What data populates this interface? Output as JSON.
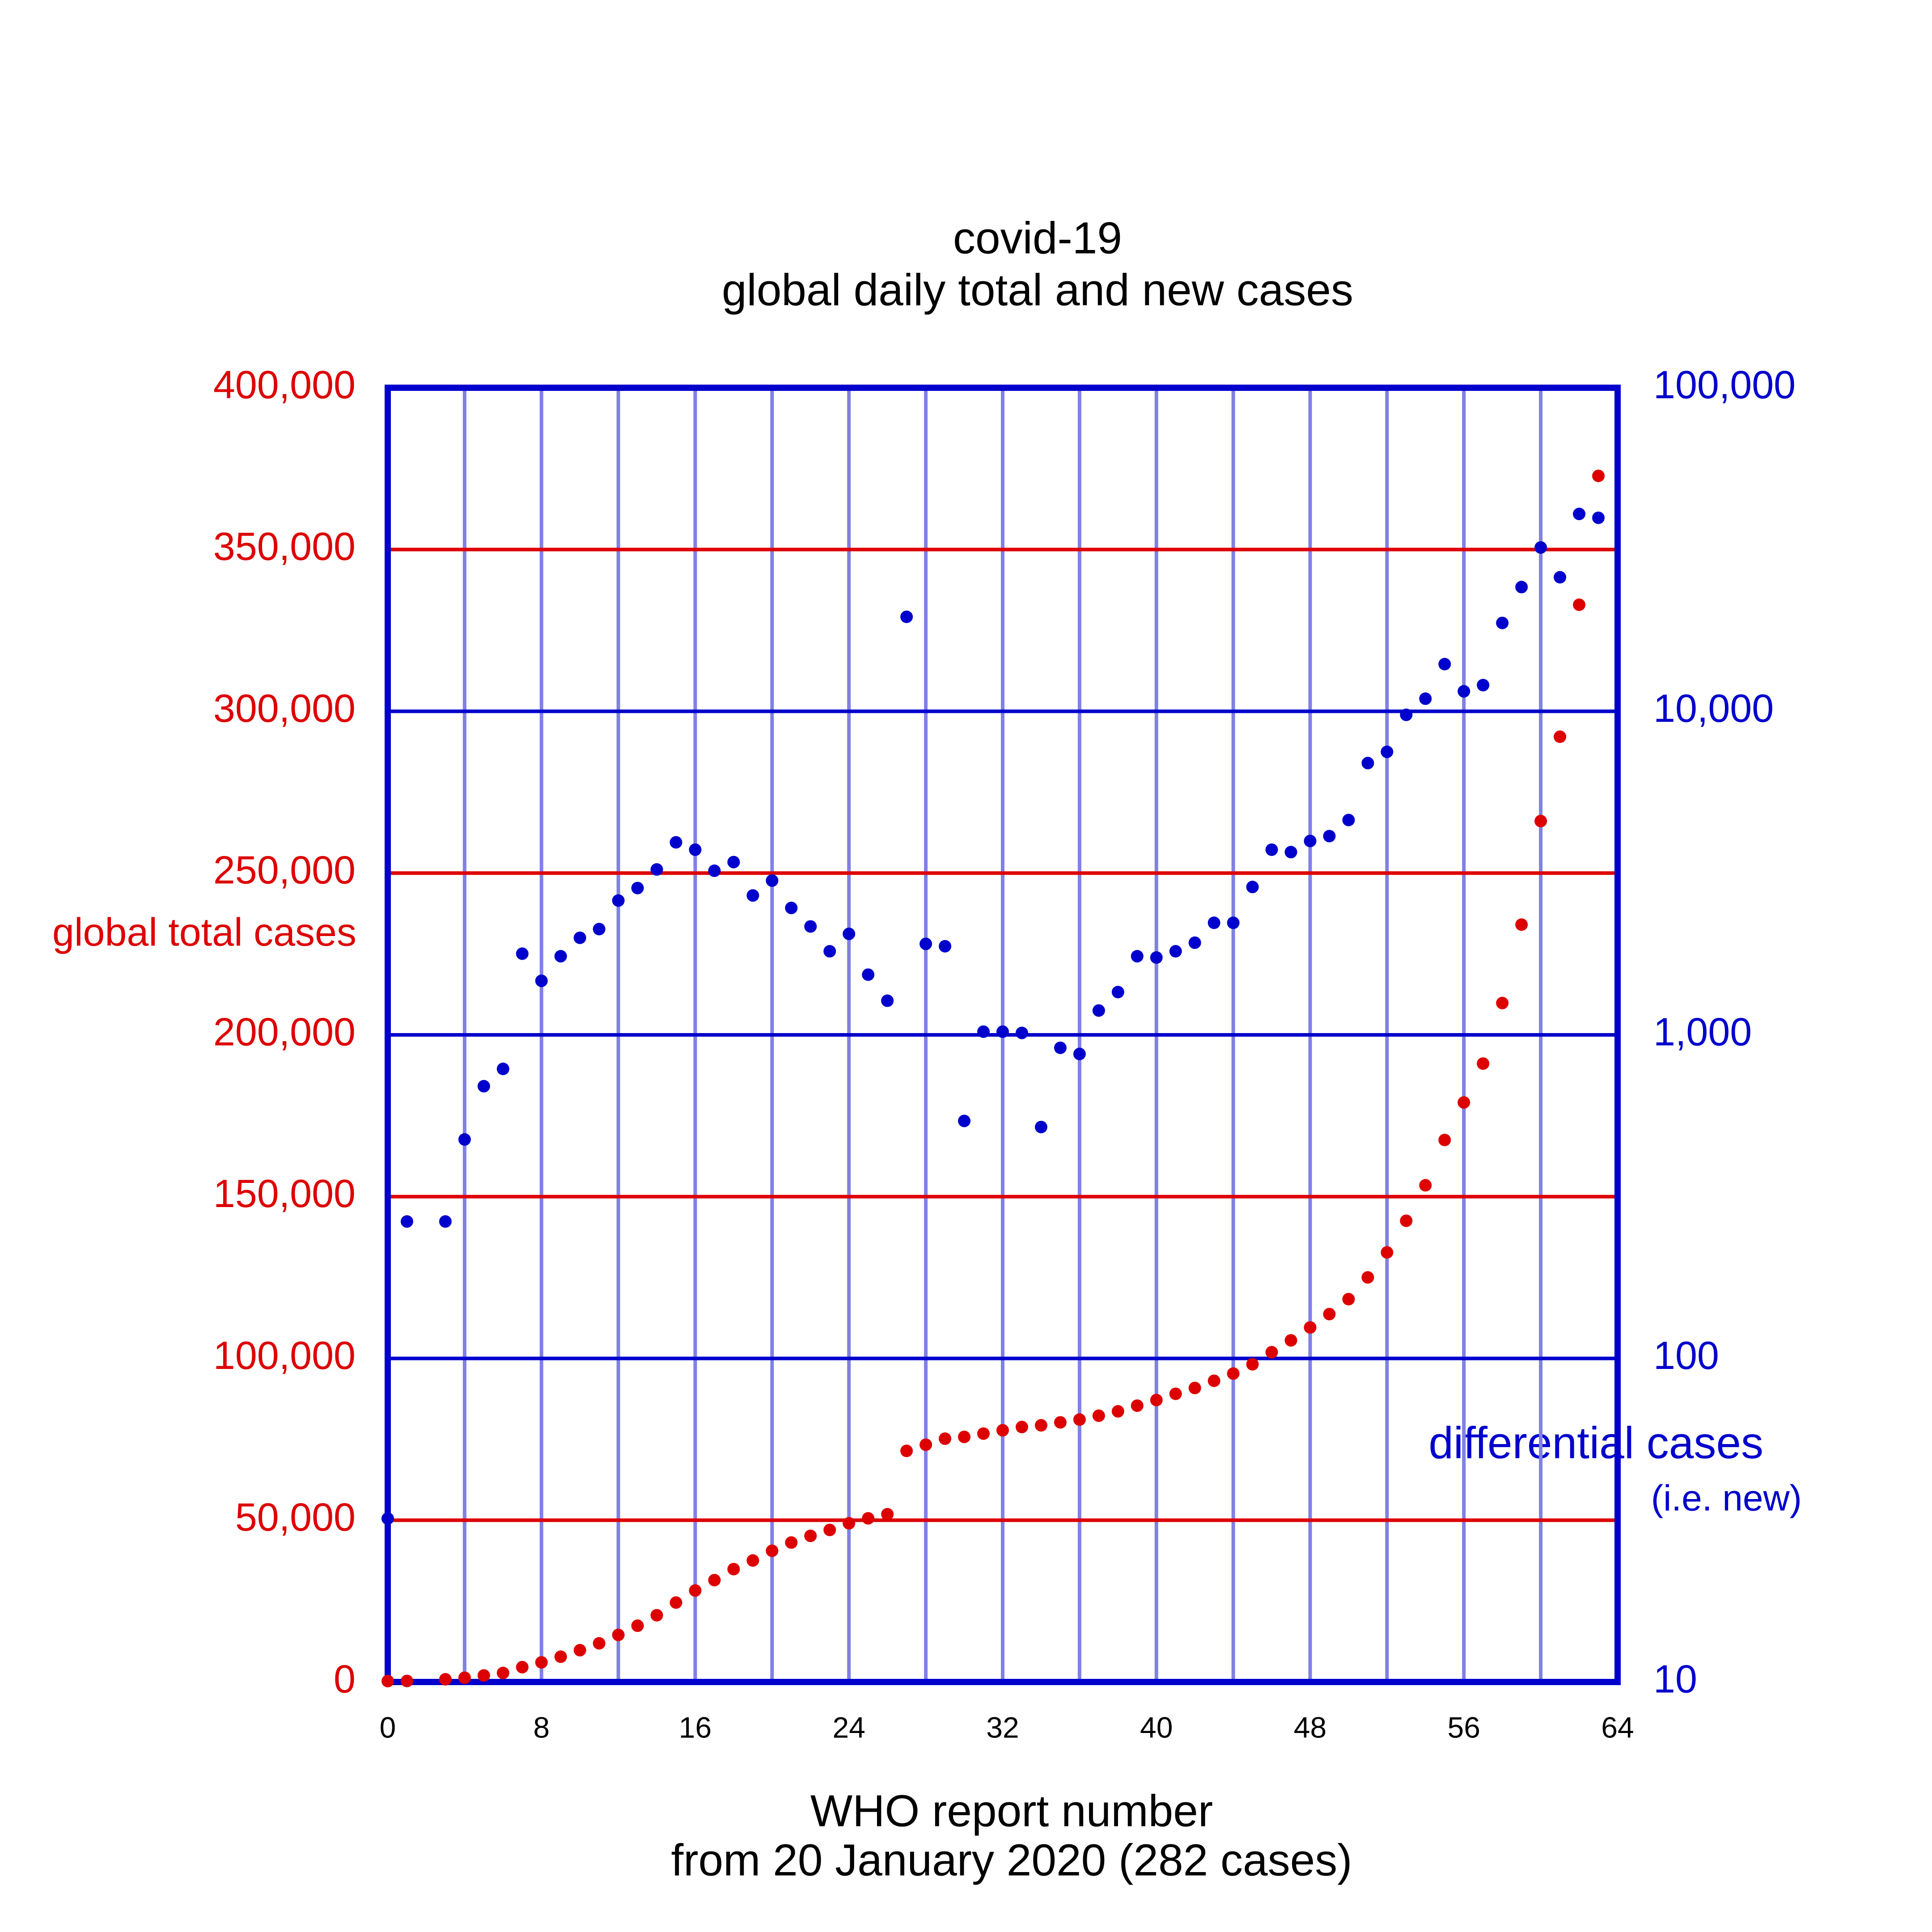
{
  "chart_data": {
    "type": "scatter",
    "title": "covid-19",
    "subtitle": "global daily total and new cases",
    "xlabel": "WHO report number",
    "xlabel_note": "from 20 January 2020 (282 cases)",
    "ylabel": "global total cases",
    "y2label": "differential cases",
    "y2label_note": "(i.e. new)",
    "x": [
      0,
      1,
      2,
      3,
      4,
      5,
      6,
      7,
      8,
      9,
      10,
      11,
      12,
      13,
      14,
      15,
      16,
      17,
      18,
      19,
      20,
      21,
      22,
      23,
      24,
      25,
      26,
      27,
      28,
      29,
      30,
      31,
      32,
      33,
      34,
      35,
      36,
      37,
      38,
      39,
      40,
      41,
      42,
      43,
      44,
      45,
      46,
      47,
      48,
      49,
      50,
      51,
      52,
      53,
      54,
      55,
      56,
      57,
      58,
      59,
      60,
      61,
      62,
      63,
      64
    ],
    "series": [
      {
        "color": "#dd0000",
        "axis": "y",
        "values": [
          282,
          314,
          null,
          846,
          1320,
          2014,
          2798,
          4593,
          6065,
          7818,
          9826,
          11953,
          14557,
          17391,
          20630,
          24554,
          28276,
          31481,
          34886,
          37558,
          40554,
          43103,
          45171,
          46997,
          49053,
          50580,
          51857,
          71429,
          73332,
          75204,
          75748,
          76769,
          77794,
          78811,
          79331,
          80239,
          81109,
          82294,
          83652,
          85403,
          87137,
          89068,
          90870,
          93090,
          95324,
          98192,
          101927,
          105586,
          109577,
          113702,
          118319,
          125048,
          132758,
          142539,
          153517,
          167511,
          179111,
          191127,
          209839,
          234073,
          266073,
          292142,
          332930,
          372757
        ]
      },
      {
        "color": "#0000cc",
        "axis": "y2",
        "values": [
          32,
          265,
          null,
          265,
          475,
          694,
          785,
          1782,
          1469,
          1750,
          1995,
          2123,
          2601,
          2843,
          3245,
          3936,
          3735,
          3215,
          3420,
          2697,
          2998,
          2468,
          2163,
          1813,
          2052,
          1535,
          1275,
          19590,
          1911,
          1879,
          542,
          1023,
          1023,
          1014,
          519,
          912,
          873,
          1189,
          1356,
          1750,
          1734,
          1813,
          1927,
          2220,
          2220,
          2865,
          3735,
          3672,
          3974,
          4114,
          4613,
          6918,
          7494,
          9752,
          10940,
          13990,
          11530,
          12050,
          18750,
          24210,
          32080,
          25960,
          40740,
          39630,
          null
        ]
      }
    ],
    "xlim": [
      0,
      64
    ],
    "xticks": [
      0,
      8,
      16,
      24,
      32,
      40,
      48,
      56,
      64
    ],
    "xminor": [
      4,
      8,
      12,
      16,
      20,
      24,
      28,
      32,
      36,
      40,
      44,
      48,
      52,
      56,
      60
    ],
    "ylim": [
      0,
      400000
    ],
    "yticks": [
      0,
      {
        "value": 50000,
        "label": "50,000"
      },
      {
        "value": 100000,
        "label": "100,000"
      },
      {
        "value": 150000,
        "label": "150,000"
      },
      {
        "value": 200000,
        "label": "200,000"
      },
      {
        "value": 250000,
        "label": "250,000"
      },
      {
        "value": 300000,
        "label": "300,000"
      },
      {
        "value": 350000,
        "label": "350,000"
      },
      {
        "value": 400000,
        "label": "400,000"
      }
    ],
    "y2lim": [
      10,
      100000
    ],
    "y2ticks": [
      10,
      100,
      {
        "value": 1000,
        "label": "1,000"
      },
      {
        "value": 10000,
        "label": "10,000"
      },
      {
        "value": 100000,
        "label": "100,000"
      }
    ],
    "y2log": true,
    "grid": true,
    "ycolor": "#dd0000",
    "y2color": "#0000cc",
    "xgridcolor": "#8080e6"
  }
}
